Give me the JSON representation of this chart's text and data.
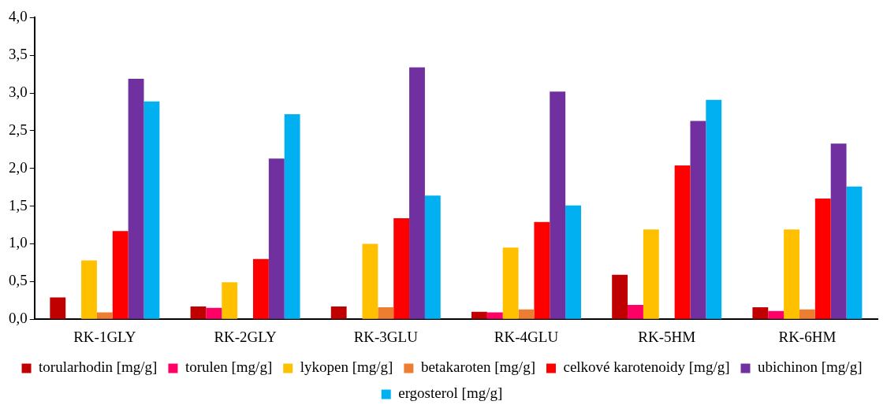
{
  "chart_data": {
    "type": "bar",
    "categories": [
      "RK-1GLY",
      "RK-2GLY",
      "RK-3GLU",
      "RK-4GLU",
      "RK-5HM",
      "RK-6HM"
    ],
    "series": [
      {
        "name": "torularhodin [mg/g]",
        "color": "#c00000",
        "values": [
          0.29,
          0.17,
          0.17,
          0.1,
          0.59,
          0.16
        ]
      },
      {
        "name": "torulen [mg/g]",
        "color": "#ff0066",
        "values": [
          null,
          0.15,
          null,
          0.09,
          0.19,
          0.11
        ]
      },
      {
        "name": "lykopen [mg/g]",
        "color": "#ffc000",
        "values": [
          0.78,
          0.49,
          1.0,
          0.95,
          1.19,
          1.19
        ]
      },
      {
        "name": "betakaroten [mg/g]",
        "color": "#ed7d31",
        "values": [
          0.09,
          null,
          0.16,
          0.13,
          null,
          0.13
        ]
      },
      {
        "name": "celkové karotenoidy [mg/g]",
        "color": "#ff0000",
        "values": [
          1.17,
          0.8,
          1.34,
          1.29,
          2.04,
          1.6
        ]
      },
      {
        "name": "ubichinon [mg/g]",
        "color": "#7030a0",
        "values": [
          3.19,
          2.13,
          3.34,
          3.02,
          2.63,
          2.33
        ]
      },
      {
        "name": "ergosterol [mg/g]",
        "color": "#00b0f0",
        "values": [
          2.89,
          2.72,
          1.64,
          1.51,
          2.91,
          1.76
        ]
      }
    ],
    "ylim": [
      0,
      4
    ],
    "yticks": [
      {
        "value": 0,
        "label": "0,0"
      },
      {
        "value": 0.5,
        "label": "0,5"
      },
      {
        "value": 1,
        "label": "1,0"
      },
      {
        "value": 1.5,
        "label": "1,5"
      },
      {
        "value": 2,
        "label": "2,0"
      },
      {
        "value": 2.5,
        "label": "2,5"
      },
      {
        "value": 3,
        "label": "3,0"
      },
      {
        "value": 3.5,
        "label": "3,5"
      },
      {
        "value": 4,
        "label": "4,0"
      }
    ],
    "grid": false,
    "legend": "bottom"
  }
}
